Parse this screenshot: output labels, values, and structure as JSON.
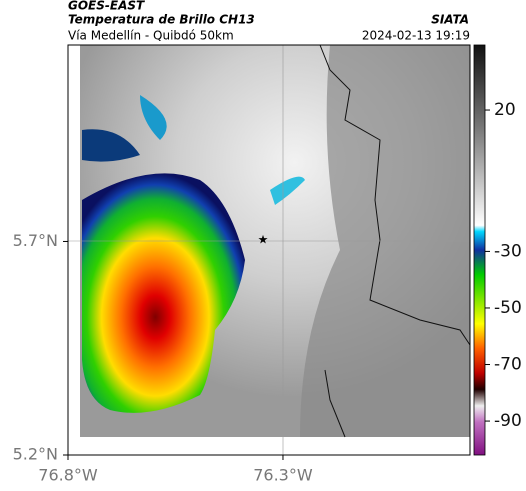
{
  "header": {
    "source": "GOES-EAST",
    "title": "Temperatura de Brillo CH13",
    "subtitle": "Vía Medellín - Quibdó 50km",
    "org": "SIATA",
    "datetime": "2024-02-13 19:19"
  },
  "map": {
    "lat_range": [
      5.2,
      6.16
    ],
    "lon_range": [
      -76.8,
      -75.865
    ],
    "lat_ticks": [
      {
        "value": 5.2,
        "label": "5.2°N"
      },
      {
        "value": 5.7,
        "label": "5.7°N"
      }
    ],
    "lon_ticks": [
      {
        "value": -76.8,
        "label": "76.8°W"
      },
      {
        "value": -76.3,
        "label": "76.3°W"
      }
    ]
  },
  "colorbar": {
    "range": [
      43,
      -102
    ],
    "ticks": [
      20,
      -30,
      -50,
      -70,
      -90
    ]
  }
}
